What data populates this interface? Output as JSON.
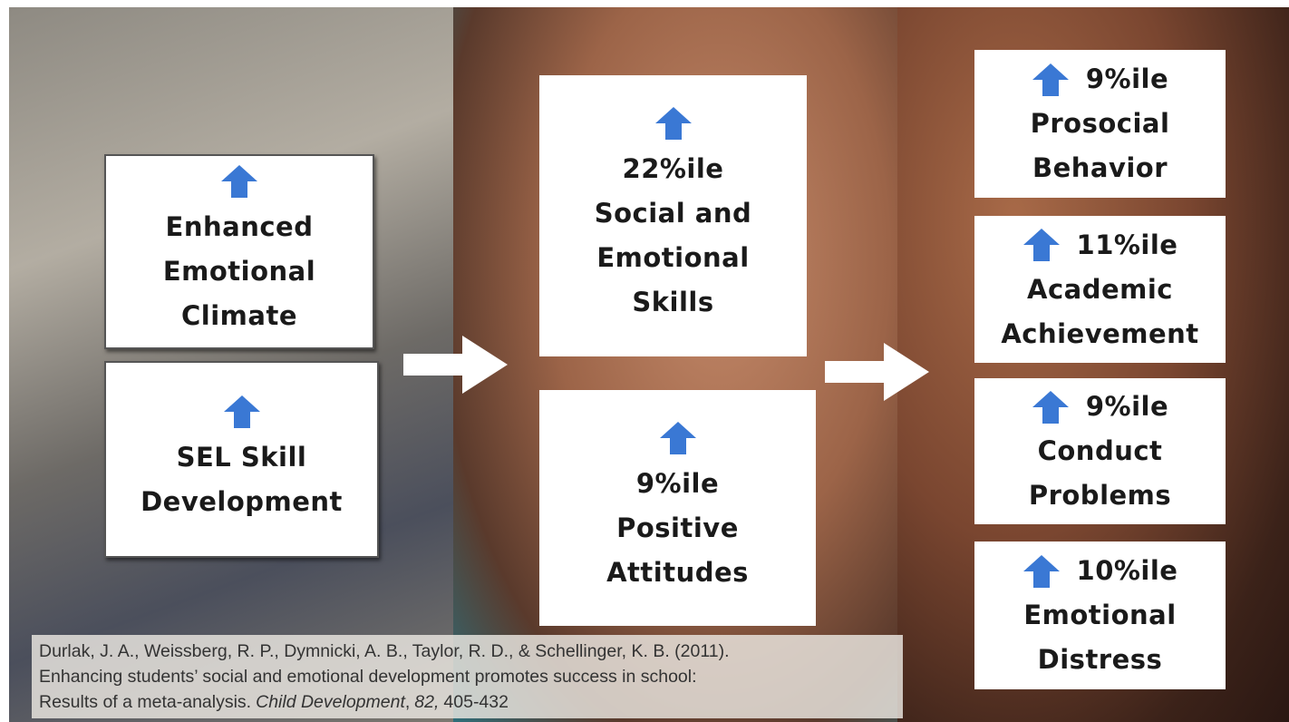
{
  "left_boxes": [
    {
      "lines": [
        "Enhanced",
        "Emotional",
        "Climate"
      ]
    },
    {
      "lines": [
        "SEL Skill",
        "Development"
      ]
    }
  ],
  "middle_boxes": [
    {
      "lines": [
        "22%ile",
        "Social and",
        "Emotional",
        "Skills"
      ]
    },
    {
      "lines": [
        "9%ile",
        "Positive",
        "Attitudes"
      ]
    }
  ],
  "right_boxes": [
    {
      "lines": [
        "9%ile",
        "Prosocial",
        "Behavior"
      ]
    },
    {
      "lines": [
        "11%ile",
        "Academic",
        "Achievement"
      ]
    },
    {
      "lines": [
        "9%ile",
        "Conduct",
        "Problems"
      ]
    },
    {
      "lines": [
        "10%ile",
        "Emotional",
        "Distress"
      ]
    }
  ],
  "citation": {
    "line1": "Durlak, J. A., Weissberg, R. P., Dymnicki, A. B., Taylor, R. D., & Schellinger, K. B. (2011).",
    "line2": "Enhancing students’ social and emotional development promotes success in school:",
    "line3": [
      "Results of a meta-analysis.",
      "Child Development",
      ",",
      "82,",
      "405-432"
    ]
  }
}
